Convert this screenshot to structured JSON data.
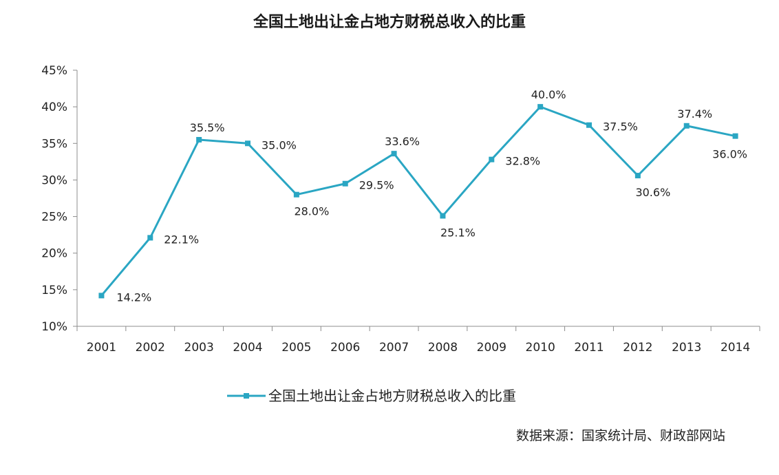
{
  "chart_data": {
    "type": "line",
    "title": "全国土地出让金占地方财税总收入的比重",
    "categories": [
      "2001",
      "2002",
      "2003",
      "2004",
      "2005",
      "2006",
      "2007",
      "2008",
      "2009",
      "2010",
      "2011",
      "2012",
      "2013",
      "2014"
    ],
    "series": [
      {
        "name": "全国土地出让金占地方财税总收入的比重",
        "values": [
          14.2,
          22.1,
          35.5,
          35.0,
          28.0,
          29.5,
          33.6,
          25.1,
          32.8,
          40.0,
          37.5,
          30.6,
          37.4,
          36.0
        ],
        "labels": [
          "14.2%",
          "22.1%",
          "35.5%",
          "35.0%",
          "28.0%",
          "29.5%",
          "33.6%",
          "25.1%",
          "32.8%",
          "40.0%",
          "37.5%",
          "30.6%",
          "37.4%",
          "36.0%"
        ],
        "color": "#2aa6c3"
      }
    ],
    "yticks": [
      "10%",
      "15%",
      "20%",
      "25%",
      "30%",
      "35%",
      "40%",
      "45%"
    ],
    "ylim": [
      10,
      45
    ],
    "xlabel": "",
    "ylabel": "",
    "grid": false,
    "legend": "bottom"
  },
  "source_note": "数据来源：国家统计局、财政部网站",
  "colors": {
    "line": "#2aa6c3",
    "axis": "#8c8c8c"
  }
}
